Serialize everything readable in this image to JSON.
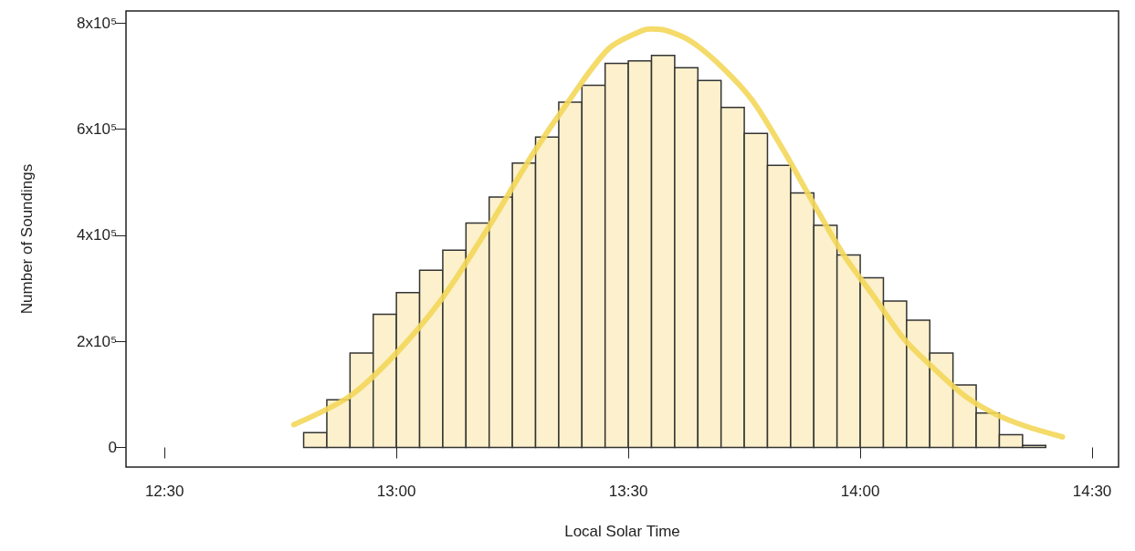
{
  "chart_data": {
    "type": "histogram",
    "xlabel": "Local Solar Time",
    "ylabel": "Number of Soundings",
    "xlim": [
      12.417,
      14.557
    ],
    "ylim": [
      -37000,
      823000
    ],
    "xticks": [
      {
        "value": 12.5,
        "label": "12:30"
      },
      {
        "value": 13,
        "label": "13:00"
      },
      {
        "value": 13.5,
        "label": "13:30"
      },
      {
        "value": 14,
        "label": "14:00"
      },
      {
        "value": 14.5,
        "label": "14:30"
      }
    ],
    "yticks": [
      0,
      {
        "value": 200000,
        "label": "2x10⁵"
      },
      {
        "value": 400000,
        "label": "4x10⁵"
      },
      {
        "value": 600000,
        "label": "6x10⁵"
      },
      {
        "value": 800000,
        "label": "8x10⁵"
      }
    ],
    "grid": false,
    "series": [
      {
        "color": "#fcf1cc",
        "bins": [
          12.8,
          12.85,
          12.9,
          12.95,
          13.0,
          13.05,
          13.1,
          13.15,
          13.2,
          13.25,
          13.3,
          13.35,
          13.4,
          13.45,
          13.5,
          13.55,
          13.6,
          13.65,
          13.7,
          13.75,
          13.8,
          13.85,
          13.9,
          13.95,
          14.0,
          14.05,
          14.1,
          14.15,
          14.2,
          14.25,
          14.3,
          14.35,
          14.4
        ],
        "values": [
          28000,
          90000,
          178000,
          251000,
          292000,
          334000,
          372000,
          423000,
          472000,
          536000,
          585000,
          651000,
          683000,
          724000,
          729000,
          739000,
          716000,
          692000,
          641000,
          592000,
          532000,
          480000,
          419000,
          363000,
          320000,
          276000,
          240000,
          178000,
          118000,
          65000,
          24000,
          4000
        ]
      },
      {
        "type": "line",
        "color": "#f3d75a",
        "x": [
          12.779,
          12.9,
          12.999,
          13.097,
          13.195,
          13.294,
          13.373,
          13.458,
          13.53,
          13.55,
          13.583,
          13.635,
          13.701,
          13.767,
          13.832,
          13.898,
          13.963,
          14.029,
          14.094,
          14.16,
          14.226,
          14.291,
          14.357,
          14.436
        ],
        "values": [
          43000,
          97000,
          177000,
          279000,
          410000,
          553000,
          655000,
          752000,
          786000,
          789000,
          786000,
          766000,
          718000,
          655000,
          564000,
          462000,
          365000,
          285000,
          205000,
          148000,
          97000,
          63000,
          40000,
          20000
        ]
      }
    ]
  }
}
